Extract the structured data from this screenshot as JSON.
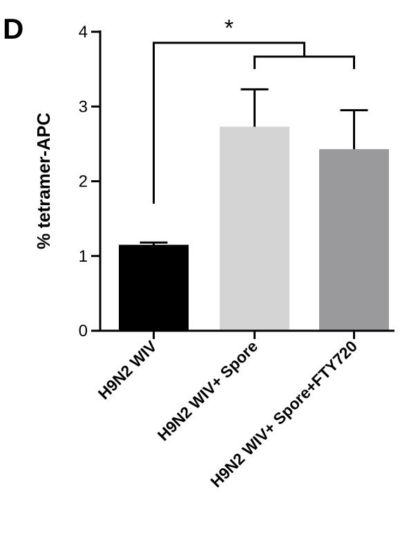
{
  "panel_label": "D",
  "chart_data": {
    "type": "bar",
    "categories": [
      "H9N2 WIV",
      "H9N2 WIV+ Spore",
      "H9N2 WIV+ Spore+FTY720"
    ],
    "values": [
      1.15,
      2.73,
      2.43
    ],
    "errors": [
      0.03,
      0.5,
      0.52
    ],
    "bar_colors": [
      "#000000",
      "#d4d4d4",
      "#9a9a9c"
    ],
    "title": "",
    "xlabel": "",
    "ylabel": "% tetramer-APC",
    "ylim": [
      0,
      4
    ],
    "yticks": [
      "0",
      "1",
      "2",
      "3",
      "4"
    ],
    "grid": false,
    "annotations": [
      {
        "text": "*",
        "between": [
          "H9N2 WIV",
          "H9N2 WIV+ Spore / H9N2 WIV+ Spore+FTY720"
        ]
      }
    ]
  }
}
